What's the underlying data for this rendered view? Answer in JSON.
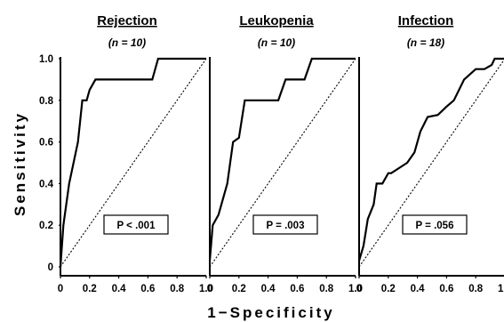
{
  "chart_data": [
    {
      "type": "line",
      "title": "Rejection",
      "subtitle": "(n = 10)",
      "annotation": "P < .001",
      "x_ticks": [
        "0",
        "0.2",
        "0.4",
        "0.6",
        "0.8",
        "1.0"
      ],
      "xlim": [
        0,
        1
      ],
      "ylim": [
        0,
        1
      ],
      "series": [
        {
          "x": [
            0,
            0.02,
            0.06,
            0.06,
            0.12,
            0.15,
            0.18,
            0.2,
            0.24,
            0.29,
            0.32,
            0.45,
            0.55,
            0.6,
            0.63,
            0.67,
            0.67,
            1.0
          ],
          "y": [
            0,
            0.2,
            0.4,
            0.4,
            0.6,
            0.8,
            0.8,
            0.85,
            0.9,
            0.9,
            0.9,
            0.9,
            0.9,
            0.9,
            0.9,
            1.0,
            1.0,
            1.0
          ]
        }
      ]
    },
    {
      "type": "line",
      "title": "Leukopenia",
      "subtitle": "(n = 10)",
      "annotation": "P = .003",
      "x_ticks": [
        "0",
        "0.2",
        "0.4",
        "0.6",
        "0.8",
        "1.0"
      ],
      "xlim": [
        0,
        1
      ],
      "ylim": [
        0,
        1
      ],
      "series": [
        {
          "x": [
            0,
            0.02,
            0.02,
            0.06,
            0.08,
            0.1,
            0.12,
            0.16,
            0.2,
            0.24,
            0.27,
            0.3,
            0.47,
            0.52,
            0.65,
            0.7,
            0.73,
            1.0
          ],
          "y": [
            0.03,
            0.2,
            0.2,
            0.25,
            0.3,
            0.35,
            0.4,
            0.6,
            0.62,
            0.8,
            0.8,
            0.8,
            0.8,
            0.9,
            0.9,
            1.0,
            1.0,
            1.0
          ]
        }
      ]
    },
    {
      "type": "line",
      "title": "Infection",
      "subtitle": "(n = 18)",
      "annotation": "P = .056",
      "x_ticks": [
        "0",
        "0.2",
        "0.4",
        "0.6",
        "0.8",
        "1.0"
      ],
      "xlim": [
        0,
        1
      ],
      "ylim": [
        0,
        1
      ],
      "series": [
        {
          "x": [
            0,
            0.03,
            0.06,
            0.06,
            0.1,
            0.12,
            0.16,
            0.2,
            0.22,
            0.33,
            0.38,
            0.42,
            0.47,
            0.54,
            0.6,
            0.65,
            0.72,
            0.8,
            0.86,
            0.91,
            0.93,
            1.0
          ],
          "y": [
            0.03,
            0.1,
            0.23,
            0.23,
            0.3,
            0.4,
            0.4,
            0.45,
            0.45,
            0.5,
            0.55,
            0.65,
            0.72,
            0.73,
            0.77,
            0.8,
            0.9,
            0.95,
            0.95,
            0.97,
            1.0,
            1.0
          ]
        }
      ]
    }
  ],
  "shared_y_ticks": [
    "0",
    "0.2",
    "0.4",
    "0.6",
    "0.8",
    "1.0"
  ],
  "shared_xlabel": "1−Specificity",
  "shared_ylabel": "Sensitivity"
}
